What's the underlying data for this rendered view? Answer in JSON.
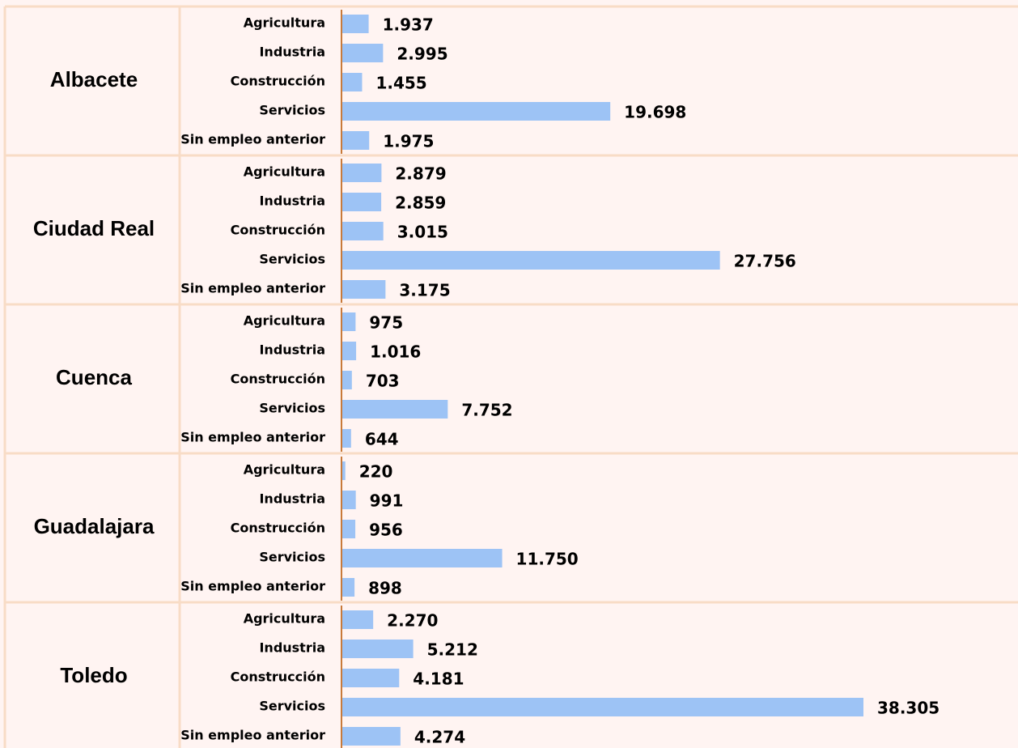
{
  "chart_data": {
    "type": "bar",
    "orientation": "horizontal",
    "color": "#9dc3f5",
    "categories": [
      "Agricultura",
      "Industria",
      "Construcción",
      "Servicios",
      "Sin empleo anterior"
    ],
    "series": [
      {
        "name": "Albacete",
        "values": [
          1937,
          2995,
          1455,
          19698,
          1975
        ],
        "value_labels": [
          "1.937",
          "2.995",
          "1.455",
          "19.698",
          "1.975"
        ]
      },
      {
        "name": "Ciudad Real",
        "values": [
          2879,
          2859,
          3015,
          27756,
          3175
        ],
        "value_labels": [
          "2.879",
          "2.859",
          "3.015",
          "27.756",
          "3.175"
        ]
      },
      {
        "name": "Cuenca",
        "values": [
          975,
          1016,
          703,
          7752,
          644
        ],
        "value_labels": [
          "975",
          "1.016",
          "703",
          "7.752",
          "644"
        ]
      },
      {
        "name": "Guadalajara",
        "values": [
          220,
          991,
          956,
          11750,
          898
        ],
        "value_labels": [
          "220",
          "991",
          "956",
          "11.750",
          "898"
        ]
      },
      {
        "name": "Toledo",
        "values": [
          2270,
          5212,
          4181,
          38305,
          4274
        ],
        "value_labels": [
          "2.270",
          "5.212",
          "4.181",
          "38.305",
          "4.274"
        ]
      }
    ]
  }
}
